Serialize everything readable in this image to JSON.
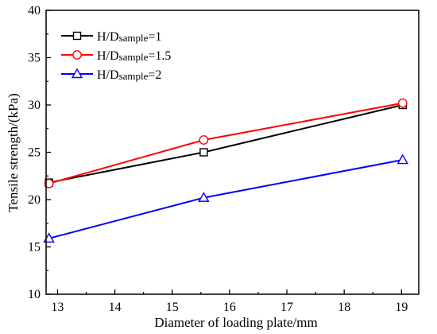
{
  "chart_data": {
    "type": "line",
    "title": "",
    "xlabel": "Diameter of loading plate/mm",
    "ylabel": "Tensile strength/(kPa)",
    "xlim": [
      12.8,
      19.3
    ],
    "ylim": [
      10,
      40
    ],
    "xticks": [
      13,
      14,
      15,
      16,
      17,
      18,
      19
    ],
    "yticks": [
      10,
      15,
      20,
      25,
      30,
      35,
      40
    ],
    "grid": false,
    "legend_position": "top-left",
    "series": [
      {
        "name": "H/Dsample=1",
        "legend_main": "H/D",
        "legend_sub": "sample",
        "legend_tail": "=1",
        "color": "#000000",
        "marker": "square",
        "x": [
          12.85,
          15.55,
          19.02
        ],
        "y": [
          21.8,
          25.0,
          30.0
        ]
      },
      {
        "name": "H/Dsample=1.5",
        "legend_main": "H/D",
        "legend_sub": "sample",
        "legend_tail": "=1.5",
        "color": "#ff0000",
        "marker": "circle",
        "x": [
          12.85,
          15.55,
          19.02
        ],
        "y": [
          21.7,
          26.3,
          30.2
        ]
      },
      {
        "name": "H/Dsample=2",
        "legend_main": "H/D",
        "legend_sub": "sample",
        "legend_tail": "=2",
        "color": "#0000ff",
        "marker": "triangle",
        "x": [
          12.85,
          15.55,
          19.02
        ],
        "y": [
          15.9,
          20.2,
          24.2
        ]
      }
    ]
  }
}
